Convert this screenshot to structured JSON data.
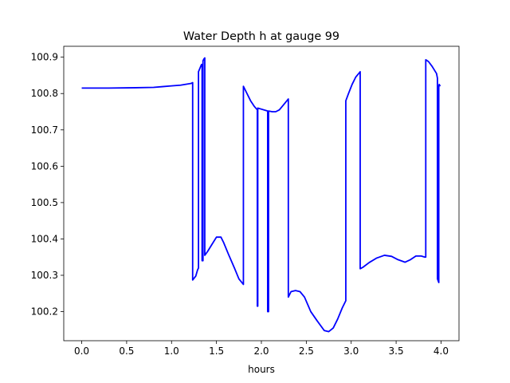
{
  "chart_data": {
    "type": "line",
    "title": "Water Depth h at gauge 99",
    "xlabel": "hours",
    "ylabel": "",
    "xlim": [
      -0.2,
      4.2
    ],
    "ylim": [
      100.12,
      100.93
    ],
    "xticks": [
      0.0,
      0.5,
      1.0,
      1.5,
      2.0,
      2.5,
      3.0,
      3.5,
      4.0
    ],
    "xtick_labels": [
      "0.0",
      "0.5",
      "1.0",
      "1.5",
      "2.0",
      "2.5",
      "3.0",
      "3.5",
      "4.0"
    ],
    "yticks": [
      100.2,
      100.3,
      100.4,
      100.5,
      100.6,
      100.7,
      100.8,
      100.9
    ],
    "ytick_labels": [
      "100.2",
      "100.3",
      "100.4",
      "100.5",
      "100.6",
      "100.7",
      "100.8",
      "100.9"
    ],
    "grid": false,
    "line_color": "#0000ff",
    "series": [
      {
        "x": [
          0.0,
          0.3,
          0.6,
          0.8,
          0.9,
          1.0,
          1.1,
          1.2,
          1.22,
          1.235,
          1.235,
          1.27,
          1.29,
          1.3,
          1.3,
          1.32,
          1.33,
          1.335,
          1.34,
          1.34,
          1.35,
          1.35,
          1.36,
          1.37,
          1.37,
          1.4,
          1.45,
          1.5,
          1.55,
          1.58,
          1.63,
          1.7,
          1.75,
          1.8,
          1.8,
          1.84,
          1.88,
          1.92,
          1.955,
          1.955,
          1.96,
          1.96,
          2.07,
          2.07,
          2.08,
          2.08,
          2.12,
          2.16,
          2.2,
          2.25,
          2.3,
          2.3,
          2.33,
          2.38,
          2.43,
          2.48,
          2.55,
          2.62,
          2.7,
          2.75,
          2.8,
          2.85,
          2.9,
          2.94,
          2.94,
          2.97,
          3.01,
          3.05,
          3.1,
          3.1,
          3.13,
          3.2,
          3.28,
          3.37,
          3.45,
          3.52,
          3.6,
          3.66,
          3.72,
          3.78,
          3.82,
          3.83,
          3.83,
          3.86,
          3.9,
          3.95,
          3.96,
          3.96,
          3.975,
          3.975,
          3.98,
          3.99
        ],
        "y": [
          100.815,
          100.815,
          100.816,
          100.817,
          100.819,
          100.821,
          100.823,
          100.827,
          100.828,
          100.83,
          100.287,
          100.298,
          100.315,
          100.32,
          100.86,
          100.872,
          100.878,
          100.88,
          100.88,
          100.34,
          100.34,
          100.89,
          100.895,
          100.898,
          100.355,
          100.365,
          100.385,
          100.405,
          100.405,
          100.39,
          100.36,
          100.32,
          100.29,
          100.275,
          100.82,
          100.8,
          100.78,
          100.765,
          100.755,
          100.215,
          100.215,
          100.76,
          100.752,
          100.2,
          100.2,
          100.752,
          100.75,
          100.75,
          100.755,
          100.77,
          100.785,
          100.24,
          100.255,
          100.258,
          100.255,
          100.24,
          100.2,
          100.175,
          100.148,
          100.145,
          100.155,
          100.18,
          100.21,
          100.23,
          100.78,
          100.8,
          100.825,
          100.845,
          100.86,
          100.318,
          100.322,
          100.335,
          100.347,
          100.355,
          100.352,
          100.343,
          100.336,
          100.343,
          100.353,
          100.353,
          100.35,
          100.35,
          100.893,
          100.888,
          100.875,
          100.855,
          100.842,
          100.29,
          100.28,
          100.82,
          100.825,
          100.82
        ]
      }
    ]
  }
}
